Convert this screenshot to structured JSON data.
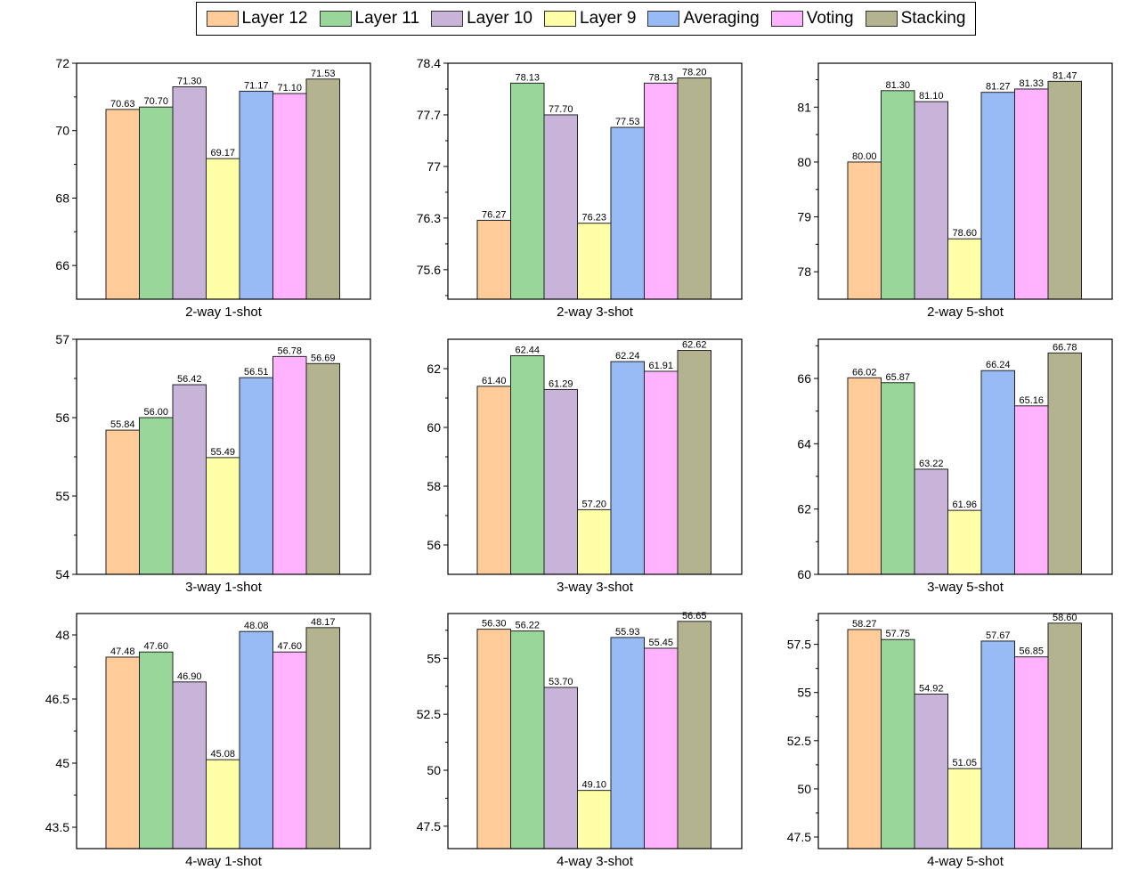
{
  "legend": {
    "items": [
      {
        "label": "Layer 12",
        "color": "#FFCC99"
      },
      {
        "label": "Layer 11",
        "color": "#99D699"
      },
      {
        "label": "Layer 10",
        "color": "#C8B4D9"
      },
      {
        "label": "Layer 9",
        "color": "#FFFFA8"
      },
      {
        "label": "Averaging",
        "color": "#99BBF5"
      },
      {
        "label": "Voting",
        "color": "#FFB3FF"
      },
      {
        "label": "Stacking",
        "color": "#B3B38F"
      }
    ]
  },
  "chart_data": [
    {
      "type": "bar",
      "title": "2-way 1-shot",
      "categories": [
        "Layer 12",
        "Layer 11",
        "Layer 10",
        "Layer 9",
        "Averaging",
        "Voting",
        "Stacking"
      ],
      "values": [
        70.63,
        70.7,
        71.3,
        69.17,
        71.17,
        71.1,
        71.53
      ],
      "labels": [
        "70.63",
        "70.70",
        "71.30",
        "69.17",
        "71.17",
        "71.10",
        "71.53"
      ],
      "ylim": [
        65,
        72
      ],
      "yticks": [
        66,
        68,
        70,
        72
      ],
      "ytick_labels": [
        "66",
        "68",
        "70",
        "72"
      ],
      "grid": false
    },
    {
      "type": "bar",
      "title": "2-way 3-shot",
      "categories": [
        "Layer 12",
        "Layer 11",
        "Layer 10",
        "Layer 9",
        "Averaging",
        "Voting",
        "Stacking"
      ],
      "values": [
        76.27,
        78.13,
        77.7,
        76.23,
        77.53,
        78.13,
        78.2
      ],
      "labels": [
        "76.27",
        "78.13",
        "77.70",
        "76.23",
        "77.53",
        "78.13",
        "78.20"
      ],
      "ylim": [
        75.2,
        78.4
      ],
      "yticks": [
        75.6,
        76.3,
        77,
        77.7,
        78.4
      ],
      "ytick_labels": [
        "75.6",
        "76.3",
        "77",
        "77.7",
        "78.4"
      ],
      "grid": false
    },
    {
      "type": "bar",
      "title": "2-way 5-shot",
      "categories": [
        "Layer 12",
        "Layer 11",
        "Layer 10",
        "Layer 9",
        "Averaging",
        "Voting",
        "Stacking"
      ],
      "values": [
        80.0,
        81.3,
        81.1,
        78.6,
        81.27,
        81.33,
        81.47
      ],
      "labels": [
        "80.00",
        "81.30",
        "81.10",
        "78.60",
        "81.27",
        "81.33",
        "81.47"
      ],
      "ylim": [
        77.5,
        81.8
      ],
      "yticks": [
        78,
        79,
        80,
        81
      ],
      "ytick_labels": [
        "78",
        "79",
        "80",
        "81"
      ],
      "grid": false
    },
    {
      "type": "bar",
      "title": "3-way 1-shot",
      "categories": [
        "Layer 12",
        "Layer 11",
        "Layer 10",
        "Layer 9",
        "Averaging",
        "Voting",
        "Stacking"
      ],
      "values": [
        55.84,
        56.0,
        56.42,
        55.49,
        56.51,
        56.78,
        56.69
      ],
      "labels": [
        "55.84",
        "56.00",
        "56.42",
        "55.49",
        "56.51",
        "56.78",
        "56.69"
      ],
      "ylim": [
        54,
        57
      ],
      "yticks": [
        54,
        55,
        56,
        57
      ],
      "ytick_labels": [
        "54",
        "55",
        "56",
        "57"
      ],
      "grid": false
    },
    {
      "type": "bar",
      "title": "3-way 3-shot",
      "categories": [
        "Layer 12",
        "Layer 11",
        "Layer 10",
        "Layer 9",
        "Averaging",
        "Voting",
        "Stacking"
      ],
      "values": [
        61.4,
        62.44,
        61.29,
        57.2,
        62.24,
        61.91,
        62.62
      ],
      "labels": [
        "61.40",
        "62.44",
        "61.29",
        "57.20",
        "62.24",
        "61.91",
        "62.62"
      ],
      "ylim": [
        55,
        63
      ],
      "yticks": [
        56,
        58,
        60,
        62
      ],
      "ytick_labels": [
        "56",
        "58",
        "60",
        "62"
      ],
      "grid": false
    },
    {
      "type": "bar",
      "title": "3-way 5-shot",
      "categories": [
        "Layer 12",
        "Layer 11",
        "Layer 10",
        "Layer 9",
        "Averaging",
        "Voting",
        "Stacking"
      ],
      "values": [
        66.02,
        65.87,
        63.22,
        61.96,
        66.24,
        65.16,
        66.78
      ],
      "labels": [
        "66.02",
        "65.87",
        "63.22",
        "61.96",
        "66.24",
        "65.16",
        "66.78"
      ],
      "ylim": [
        60,
        67.2
      ],
      "yticks": [
        60,
        62,
        64,
        66
      ],
      "ytick_labels": [
        "60",
        "62",
        "64",
        "66"
      ],
      "grid": false
    },
    {
      "type": "bar",
      "title": "4-way 1-shot",
      "categories": [
        "Layer 12",
        "Layer 11",
        "Layer 10",
        "Layer 9",
        "Averaging",
        "Voting",
        "Stacking"
      ],
      "values": [
        47.48,
        47.6,
        46.9,
        45.08,
        48.08,
        47.6,
        48.17
      ],
      "labels": [
        "47.48",
        "47.60",
        "46.90",
        "45.08",
        "48.08",
        "47.60",
        "48.17"
      ],
      "ylim": [
        43,
        48.5
      ],
      "yticks": [
        43.5,
        45,
        46.5,
        48
      ],
      "ytick_labels": [
        "43.5",
        "45",
        "46.5",
        "48"
      ],
      "grid": false
    },
    {
      "type": "bar",
      "title": "4-way 3-shot",
      "categories": [
        "Layer 12",
        "Layer 11",
        "Layer 10",
        "Layer 9",
        "Averaging",
        "Voting",
        "Stacking"
      ],
      "values": [
        56.3,
        56.22,
        53.7,
        49.1,
        55.93,
        55.45,
        56.65
      ],
      "labels": [
        "56.30",
        "56.22",
        "53.70",
        "49.10",
        "55.93",
        "55.45",
        "56.65"
      ],
      "ylim": [
        46.5,
        57
      ],
      "yticks": [
        47.5,
        50,
        52.5,
        55
      ],
      "ytick_labels": [
        "47.5",
        "50",
        "52.5",
        "55"
      ],
      "grid": false
    },
    {
      "type": "bar",
      "title": "4-way 5-shot",
      "categories": [
        "Layer 12",
        "Layer 11",
        "Layer 10",
        "Layer 9",
        "Averaging",
        "Voting",
        "Stacking"
      ],
      "values": [
        58.27,
        57.75,
        54.92,
        51.05,
        57.67,
        56.85,
        58.6
      ],
      "labels": [
        "58.27",
        "57.75",
        "54.92",
        "51.05",
        "57.67",
        "56.85",
        "58.60"
      ],
      "ylim": [
        46.9,
        59.1
      ],
      "yticks": [
        47.5,
        50,
        52.5,
        55,
        57.5
      ],
      "ytick_labels": [
        "47.5",
        "50",
        "52.5",
        "55",
        "57.5"
      ],
      "grid": false
    }
  ]
}
